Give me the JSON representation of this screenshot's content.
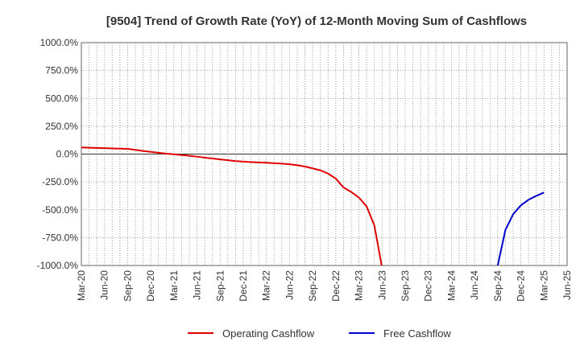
{
  "chart_data": {
    "type": "line",
    "title": "[9504]  Trend of Growth Rate (YoY) of 12-Month Moving Sum of Cashflows",
    "xlabel": "",
    "ylabel": "",
    "ylim": [
      -1000,
      1000
    ],
    "y_ticks": [
      "1000.0%",
      "750.0%",
      "500.0%",
      "250.0%",
      "0.0%",
      "-250.0%",
      "-500.0%",
      "-750.0%",
      "-1000.0%"
    ],
    "y_tick_values": [
      1000,
      750,
      500,
      250,
      0,
      -250,
      -500,
      -750,
      -1000
    ],
    "x_ticks": [
      "Mar-20",
      "Jun-20",
      "Sep-20",
      "Dec-20",
      "Mar-21",
      "Jun-21",
      "Sep-21",
      "Dec-21",
      "Mar-22",
      "Jun-22",
      "Sep-22",
      "Dec-22",
      "Mar-23",
      "Jun-23",
      "Sep-23",
      "Dec-23",
      "Mar-24",
      "Jun-24",
      "Sep-24",
      "Dec-24",
      "Mar-25",
      "Jun-25"
    ],
    "grid": true,
    "legend_position": "bottom",
    "categories": [
      "Mar-20",
      "Apr-20",
      "May-20",
      "Jun-20",
      "Jul-20",
      "Aug-20",
      "Sep-20",
      "Oct-20",
      "Nov-20",
      "Dec-20",
      "Jan-21",
      "Feb-21",
      "Mar-21",
      "Apr-21",
      "May-21",
      "Jun-21",
      "Jul-21",
      "Aug-21",
      "Sep-21",
      "Oct-21",
      "Nov-21",
      "Dec-21",
      "Jan-22",
      "Feb-22",
      "Mar-22",
      "Apr-22",
      "May-22",
      "Jun-22",
      "Jul-22",
      "Aug-22",
      "Sep-22",
      "Oct-22",
      "Nov-22",
      "Dec-22",
      "Jan-23",
      "Feb-23",
      "Mar-23",
      "Apr-23",
      "May-23",
      "Jun-23",
      "Jul-23",
      "Aug-23",
      "Sep-23",
      "Oct-23",
      "Nov-23",
      "Dec-23",
      "Jan-24",
      "Feb-24",
      "Mar-24",
      "Apr-24",
      "May-24",
      "Jun-24",
      "Jul-24",
      "Aug-24",
      "Sep-24",
      "Oct-24",
      "Nov-24",
      "Dec-24",
      "Jan-25",
      "Feb-25",
      "Mar-25",
      "Apr-25",
      "May-25",
      "Jun-25"
    ],
    "series": [
      {
        "name": "Operating Cashflow",
        "color": "#e00000",
        "values": [
          60,
          57,
          55,
          53,
          51,
          49,
          47,
          38,
          28,
          20,
          12,
          4,
          -2,
          -8,
          -15,
          -23,
          -32,
          -40,
          -48,
          -55,
          -63,
          -68,
          -72,
          -75,
          -78,
          -82,
          -86,
          -91,
          -100,
          -112,
          -128,
          -146,
          -175,
          -220,
          -300,
          -340,
          -390,
          -470,
          -640,
          -1020,
          null,
          null,
          null,
          null,
          null,
          null,
          null,
          null,
          null,
          null,
          null,
          null,
          null,
          null,
          null,
          null,
          null,
          null,
          null,
          null,
          null,
          null,
          null,
          null
        ]
      },
      {
        "name": "Free Cashflow",
        "color": "#0000cc",
        "values": [
          null,
          null,
          null,
          null,
          null,
          null,
          null,
          null,
          null,
          null,
          null,
          null,
          null,
          null,
          null,
          null,
          null,
          null,
          null,
          null,
          null,
          null,
          null,
          null,
          null,
          null,
          null,
          null,
          null,
          null,
          null,
          null,
          null,
          null,
          null,
          null,
          null,
          null,
          null,
          null,
          null,
          null,
          null,
          null,
          null,
          null,
          null,
          null,
          null,
          null,
          null,
          null,
          null,
          null,
          -1000,
          -680,
          -540,
          -460,
          -410,
          -375,
          -345,
          null,
          null,
          null
        ]
      }
    ]
  }
}
